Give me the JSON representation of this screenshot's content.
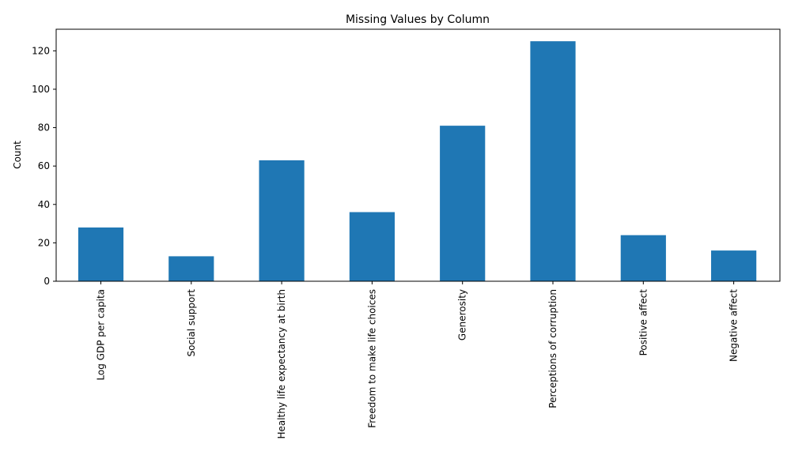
{
  "chart_data": {
    "type": "bar",
    "title": "Missing Values by Column",
    "xlabel": "",
    "ylabel": "Count",
    "categories": [
      "Log GDP per capita",
      "Social support",
      "Healthy life expectancy at birth",
      "Freedom to make life choices",
      "Generosity",
      "Perceptions of corruption",
      "Positive affect",
      "Negative affect"
    ],
    "values": [
      28,
      13,
      63,
      36,
      81,
      125,
      24,
      16
    ],
    "ylim": [
      0,
      131.25
    ],
    "yticks": [
      0,
      20,
      40,
      60,
      80,
      100,
      120
    ],
    "grid": false,
    "bar_color": "#1f77b4"
  }
}
